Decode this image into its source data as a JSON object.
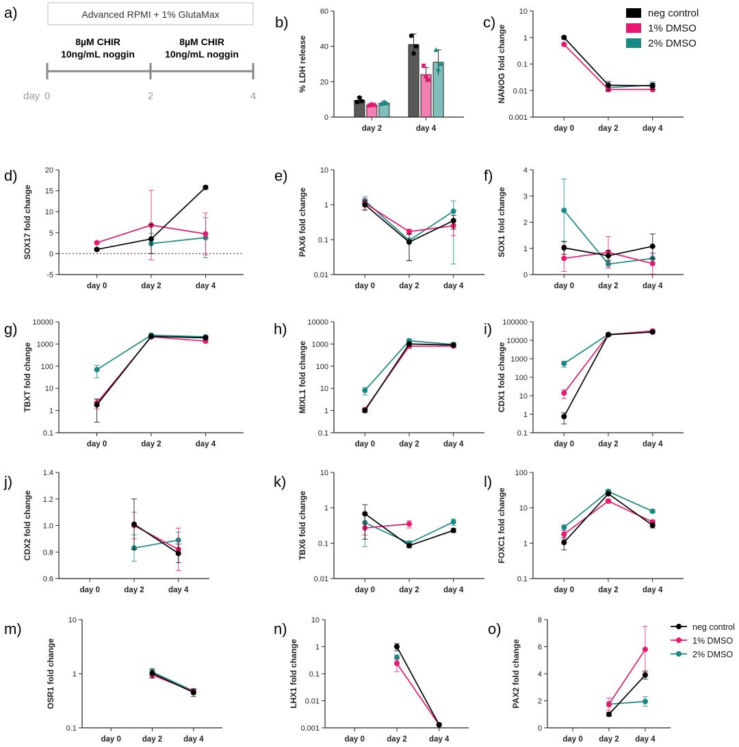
{
  "panel_a": {
    "letter": "a)",
    "medium": "Advanced RPMI + 1% GlutaMax",
    "steps": [
      {
        "line1": "8µM CHIR",
        "line2": "10ng/mL noggin"
      },
      {
        "line1": "8µM CHIR",
        "line2": "10ng/mL noggin"
      }
    ],
    "axis_label": "day",
    "ticks": [
      "0",
      "2",
      "4"
    ]
  },
  "colors": {
    "neg control": "#000000",
    "1% DMSO": "#e8186f",
    "2% DMSO": "#188982"
  },
  "legends": {
    "top": [
      "neg control",
      "1% DMSO",
      "2% DMSO"
    ],
    "bottom": [
      "neg control",
      "1% DMSO",
      "2% DMSO"
    ]
  },
  "chart_data": [
    {
      "id": "b",
      "letter": "b)",
      "type": "bar",
      "ylabel": "% LDH release",
      "scale": "linear",
      "ylim": [
        0,
        60
      ],
      "yticks": [
        "0",
        "20",
        "40",
        "60"
      ],
      "categories": [
        "day 2",
        "day 4"
      ],
      "series": [
        {
          "name": "neg control",
          "values": [
            9.5,
            41
          ],
          "err": [
            2,
            6
          ],
          "points": [
            [
              8.5,
              11,
              9
            ],
            [
              46,
              36,
              40
            ]
          ]
        },
        {
          "name": "1% DMSO",
          "values": [
            6.8,
            24
          ],
          "err": [
            0.8,
            4
          ],
          "points": [
            [
              6.5,
              7.2,
              6.8
            ],
            [
              29,
              23,
              21
            ]
          ]
        },
        {
          "name": "2% DMSO",
          "values": [
            7.9,
            31
          ],
          "err": [
            1,
            7
          ],
          "points": [
            [
              7.5,
              8.5,
              7.8
            ],
            [
              38,
              27,
              30
            ]
          ]
        }
      ]
    },
    {
      "id": "c",
      "letter": "c)",
      "type": "line",
      "ylabel": "NANOG fold change",
      "scale": "log",
      "ylim": [
        0.001,
        10
      ],
      "yticks": [
        "0.001",
        "0.01",
        "0.1",
        "1",
        "10"
      ],
      "categories": [
        "day 0",
        "day 2",
        "day 4"
      ],
      "series": [
        {
          "name": "neg control",
          "values": [
            1,
            0.016,
            0.015
          ],
          "err": [
            0.1,
            0.006,
            0.004
          ]
        },
        {
          "name": "1% DMSO",
          "values": [
            0.55,
            0.011,
            0.011
          ],
          "err": [
            0.06,
            0.002,
            0.002
          ]
        },
        {
          "name": "2% DMSO",
          "values": [
            null,
            0.013,
            0.016
          ],
          "err": [
            null,
            0.004,
            0.005
          ]
        }
      ]
    },
    {
      "id": "d",
      "letter": "d)",
      "type": "line",
      "ylabel": "SOX17 fold change",
      "scale": "linear",
      "ylim": [
        -5,
        20
      ],
      "yticks": [
        "-5",
        "0",
        "5",
        "10",
        "15",
        "20"
      ],
      "categories": [
        "day 0",
        "day 2",
        "day 4"
      ],
      "zero_line": true,
      "series": [
        {
          "name": "neg control",
          "values": [
            1,
            3.5,
            15.8
          ],
          "err": [
            0.3,
            3.5,
            0.4
          ]
        },
        {
          "name": "1% DMSO",
          "values": [
            2.6,
            6.8,
            4.7
          ],
          "err": [
            0.3,
            8.3,
            5
          ]
        },
        {
          "name": "2% DMSO",
          "values": [
            null,
            2.4,
            3.8
          ],
          "err": [
            null,
            2.4,
            4.8
          ]
        }
      ]
    },
    {
      "id": "e",
      "letter": "e)",
      "type": "line",
      "ylabel": "PAX6 fold change",
      "scale": "log",
      "ylim": [
        0.01,
        10
      ],
      "yticks": [
        "0.01",
        "0.1",
        "1",
        "10"
      ],
      "categories": [
        "day 0",
        "day 2",
        "day 4"
      ],
      "series": [
        {
          "name": "neg control",
          "values": [
            1,
            0.085,
            0.35
          ],
          "err": [
            0.3,
            0.06,
            0.15
          ]
        },
        {
          "name": "1% DMSO",
          "values": [
            1.1,
            0.17,
            0.25
          ],
          "err": [
            0.4,
            0.03,
            0.12
          ]
        },
        {
          "name": "2% DMSO",
          "values": [
            1.3,
            0.095,
            0.65
          ],
          "err": [
            0.4,
            0.07,
            0.63
          ]
        }
      ]
    },
    {
      "id": "f",
      "letter": "f)",
      "type": "line",
      "ylabel": "SOX1 fold change",
      "scale": "linear",
      "ylim": [
        0,
        4
      ],
      "yticks": [
        "0",
        "1",
        "2",
        "3",
        "4"
      ],
      "categories": [
        "day 0",
        "day 2",
        "day 4"
      ],
      "series": [
        {
          "name": "neg control",
          "values": [
            1.02,
            0.72,
            1.08
          ],
          "err": [
            0.25,
            0.2,
            0.47
          ]
        },
        {
          "name": "1% DMSO",
          "values": [
            0.62,
            0.85,
            0.42
          ],
          "err": [
            0.5,
            0.6,
            0.4
          ]
        },
        {
          "name": "2% DMSO",
          "values": [
            2.45,
            0.4,
            0.62
          ],
          "err": [
            1.2,
            0.15,
            0.2
          ]
        }
      ]
    },
    {
      "id": "g",
      "letter": "g)",
      "type": "line",
      "ylabel": "TBXT fold change",
      "scale": "log",
      "ylim": [
        0.1,
        10000
      ],
      "yticks": [
        "0.1",
        "1",
        "10",
        "100",
        "1000",
        "10000"
      ],
      "categories": [
        "day 0",
        "day 2",
        "day 4"
      ],
      "series": [
        {
          "name": "neg control",
          "values": [
            1.8,
            2200,
            1900
          ],
          "err": [
            1.5,
            300,
            300
          ]
        },
        {
          "name": "1% DMSO",
          "values": [
            2.2,
            2100,
            1350
          ],
          "err": [
            1,
            300,
            200
          ]
        },
        {
          "name": "2% DMSO",
          "values": [
            70,
            2500,
            2100
          ],
          "err": [
            40,
            400,
            300
          ]
        }
      ]
    },
    {
      "id": "h",
      "letter": "h)",
      "type": "line",
      "ylabel": "MIXL1 fold change",
      "scale": "log",
      "ylim": [
        0.1,
        10000
      ],
      "yticks": [
        "0.1",
        "1",
        "10",
        "100",
        "1000",
        "10000"
      ],
      "categories": [
        "day 0",
        "day 2",
        "day 4"
      ],
      "series": [
        {
          "name": "neg control",
          "values": [
            1,
            1000,
            900
          ],
          "err": [
            0.2,
            200,
            150
          ]
        },
        {
          "name": "1% DMSO",
          "values": [
            1.1,
            800,
            800
          ],
          "err": [
            0.2,
            150,
            100
          ]
        },
        {
          "name": "2% DMSO",
          "values": [
            8,
            1400,
            950
          ],
          "err": [
            3,
            300,
            150
          ]
        }
      ]
    },
    {
      "id": "i",
      "letter": "i)",
      "type": "line",
      "ylabel": "CDX1 fold change",
      "scale": "log",
      "ylim": [
        0.1,
        100000
      ],
      "yticks": [
        "0.1",
        "1",
        "10",
        "100",
        "1000",
        "10000",
        "100000"
      ],
      "categories": [
        "day 0",
        "day 2",
        "day 4"
      ],
      "series": [
        {
          "name": "neg control",
          "values": [
            0.75,
            20000,
            28000
          ],
          "err": [
            0.45,
            3000,
            4000
          ]
        },
        {
          "name": "1% DMSO",
          "values": [
            14,
            20000,
            32000
          ],
          "err": [
            7,
            3000,
            4000
          ]
        },
        {
          "name": "2% DMSO",
          "values": [
            550,
            21000,
            29000
          ],
          "err": [
            200,
            3000,
            4000
          ]
        }
      ]
    },
    {
      "id": "j",
      "letter": "j)",
      "type": "line",
      "ylabel": "CDX2 fold change",
      "scale": "linear",
      "ylim": [
        0.6,
        1.4
      ],
      "yticks": [
        "0.6",
        "0.8",
        "1.0",
        "1.2",
        "1.4"
      ],
      "categories": [
        "day 0",
        "day 2",
        "day 4"
      ],
      "series": [
        {
          "name": "neg control",
          "values": [
            null,
            1.01,
            0.79
          ],
          "err": [
            null,
            0.19,
            0.07
          ]
        },
        {
          "name": "1% DMSO",
          "values": [
            null,
            1.0,
            0.82
          ],
          "err": [
            null,
            0.1,
            0.16
          ]
        },
        {
          "name": "2% DMSO",
          "values": [
            null,
            0.83,
            0.89
          ],
          "err": [
            null,
            0.1,
            0.06
          ]
        }
      ]
    },
    {
      "id": "k",
      "letter": "k)",
      "type": "line",
      "ylabel": "TBX6 fold change",
      "scale": "log",
      "ylim": [
        0.01,
        10
      ],
      "yticks": [
        "0.01",
        "0.1",
        "1",
        "10"
      ],
      "categories": [
        "day 0",
        "day 2",
        "day 4"
      ],
      "series": [
        {
          "name": "neg control",
          "values": [
            0.68,
            0.085,
            0.23
          ],
          "err": [
            0.55,
            0.01,
            0.03
          ]
        },
        {
          "name": "1% DMSO",
          "values": [
            0.27,
            0.35,
            null
          ],
          "err": [
            0.1,
            0.08,
            null
          ]
        },
        {
          "name": "2% DMSO",
          "values": [
            0.38,
            0.1,
            0.4
          ],
          "err": [
            0.3,
            0.015,
            0.08
          ]
        }
      ]
    },
    {
      "id": "l",
      "letter": "l)",
      "type": "line",
      "ylabel": "FOXC1 fold change",
      "scale": "log",
      "ylim": [
        0.1,
        100
      ],
      "yticks": [
        "0.1",
        "1",
        "10",
        "100"
      ],
      "categories": [
        "day 0",
        "day 2",
        "day 4"
      ],
      "series": [
        {
          "name": "neg control",
          "values": [
            1.05,
            25,
            3.2
          ],
          "err": [
            0.4,
            3,
            0.5
          ]
        },
        {
          "name": "1% DMSO",
          "values": [
            1.8,
            15.5,
            4
          ],
          "err": [
            0.5,
            2,
            0.5
          ]
        },
        {
          "name": "2% DMSO",
          "values": [
            2.8,
            29,
            8
          ],
          "err": [
            0.5,
            4,
            0.8
          ]
        }
      ]
    },
    {
      "id": "m",
      "letter": "m)",
      "type": "line",
      "ylabel": "OSR1 fold change",
      "scale": "log",
      "ylim": [
        0.1,
        10
      ],
      "yticks": [
        "0.1",
        "1",
        "10"
      ],
      "categories": [
        "day 0",
        "day 2",
        "day 4"
      ],
      "series": [
        {
          "name": "neg control",
          "values": [
            null,
            1.02,
            0.45
          ],
          "err": [
            null,
            0.18,
            0.07
          ]
        },
        {
          "name": "1% DMSO",
          "values": [
            null,
            0.95,
            0.47
          ],
          "err": [
            null,
            0.12,
            0.05
          ]
        },
        {
          "name": "2% DMSO",
          "values": [
            null,
            1.08,
            0.48
          ],
          "err": [
            null,
            0.18,
            0.05
          ]
        }
      ]
    },
    {
      "id": "n",
      "letter": "n)",
      "type": "line",
      "ylabel": "LHX1 fold change",
      "scale": "log",
      "ylim": [
        0.001,
        10
      ],
      "yticks": [
        "0.001",
        "0.01",
        "0.1",
        "1",
        "10"
      ],
      "categories": [
        "day 0",
        "day 2",
        "day 4"
      ],
      "series": [
        {
          "name": "neg control",
          "values": [
            null,
            1.0,
            0.0013
          ],
          "err": [
            null,
            0.3,
            0.0001
          ]
        },
        {
          "name": "1% DMSO",
          "values": [
            null,
            0.24,
            0.0013
          ],
          "err": [
            null,
            0.12,
            0.0001
          ]
        },
        {
          "name": "2% DMSO",
          "values": [
            null,
            0.4,
            null
          ],
          "err": [
            null,
            0.1,
            null
          ]
        }
      ]
    },
    {
      "id": "o",
      "letter": "o)",
      "type": "line",
      "ylabel": "PAX2 fold change",
      "scale": "linear",
      "ylim": [
        0,
        8
      ],
      "yticks": [
        "0",
        "2",
        "4",
        "6",
        "8"
      ],
      "categories": [
        "day 0",
        "day 2",
        "day 4"
      ],
      "series": [
        {
          "name": "neg control",
          "values": [
            null,
            1.0,
            3.9
          ],
          "err": [
            null,
            0.15,
            0.3
          ]
        },
        {
          "name": "1% DMSO",
          "values": [
            null,
            1.75,
            5.8
          ],
          "err": [
            null,
            0.45,
            1.7
          ]
        },
        {
          "name": "2% DMSO",
          "values": [
            null,
            1.75,
            1.95
          ],
          "err": [
            null,
            0.2,
            0.35
          ]
        }
      ]
    }
  ]
}
